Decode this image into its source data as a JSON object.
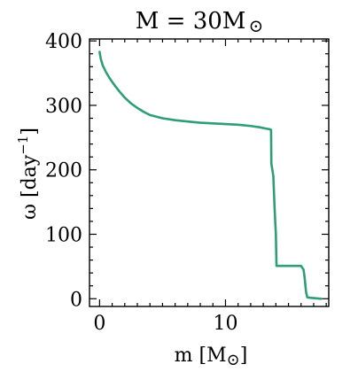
{
  "chart_data": {
    "type": "line",
    "title": "M = 30M",
    "title_symbol": "⊙",
    "xlabel": "m [M",
    "xlabel_symbol": "⊙",
    "xlabel_close": "]",
    "ylabel": "ω [day",
    "ylabel_sup": "−1",
    "ylabel_close": "]",
    "xlim": [
      -0.8,
      18.2
    ],
    "ylim": [
      -12,
      403
    ],
    "xticks": [
      0,
      10
    ],
    "yticks": [
      0,
      100,
      200,
      300,
      400
    ],
    "xtick_labels": [
      "0",
      "10"
    ],
    "ytick_labels": [
      "0",
      "100",
      "200",
      "300",
      "400"
    ],
    "grid": false,
    "color": "#2e9e79",
    "series": [
      {
        "x": [
          0,
          0.1,
          0.25,
          0.5,
          0.8,
          1.2,
          1.6,
          2.0,
          2.5,
          3.0,
          3.5,
          4.0,
          5.0,
          6.0,
          7.0,
          8.0,
          9.0,
          10.0,
          11.0,
          12.0,
          12.7,
          13.2,
          13.5,
          13.62,
          13.64,
          13.8,
          13.9,
          14.0,
          14.05,
          14.5,
          15.0,
          15.6,
          16.0,
          16.2,
          16.3,
          16.4,
          16.5,
          17.0,
          17.6
        ],
        "y": [
          383,
          372,
          362,
          352,
          342,
          331,
          321,
          312,
          303,
          296,
          290,
          285,
          280,
          277,
          275,
          273,
          272,
          271,
          270,
          268,
          266,
          264,
          263,
          262,
          210,
          190,
          140,
          100,
          51,
          51,
          51,
          51,
          51,
          45,
          30,
          10,
          2,
          1,
          0
        ]
      }
    ]
  }
}
